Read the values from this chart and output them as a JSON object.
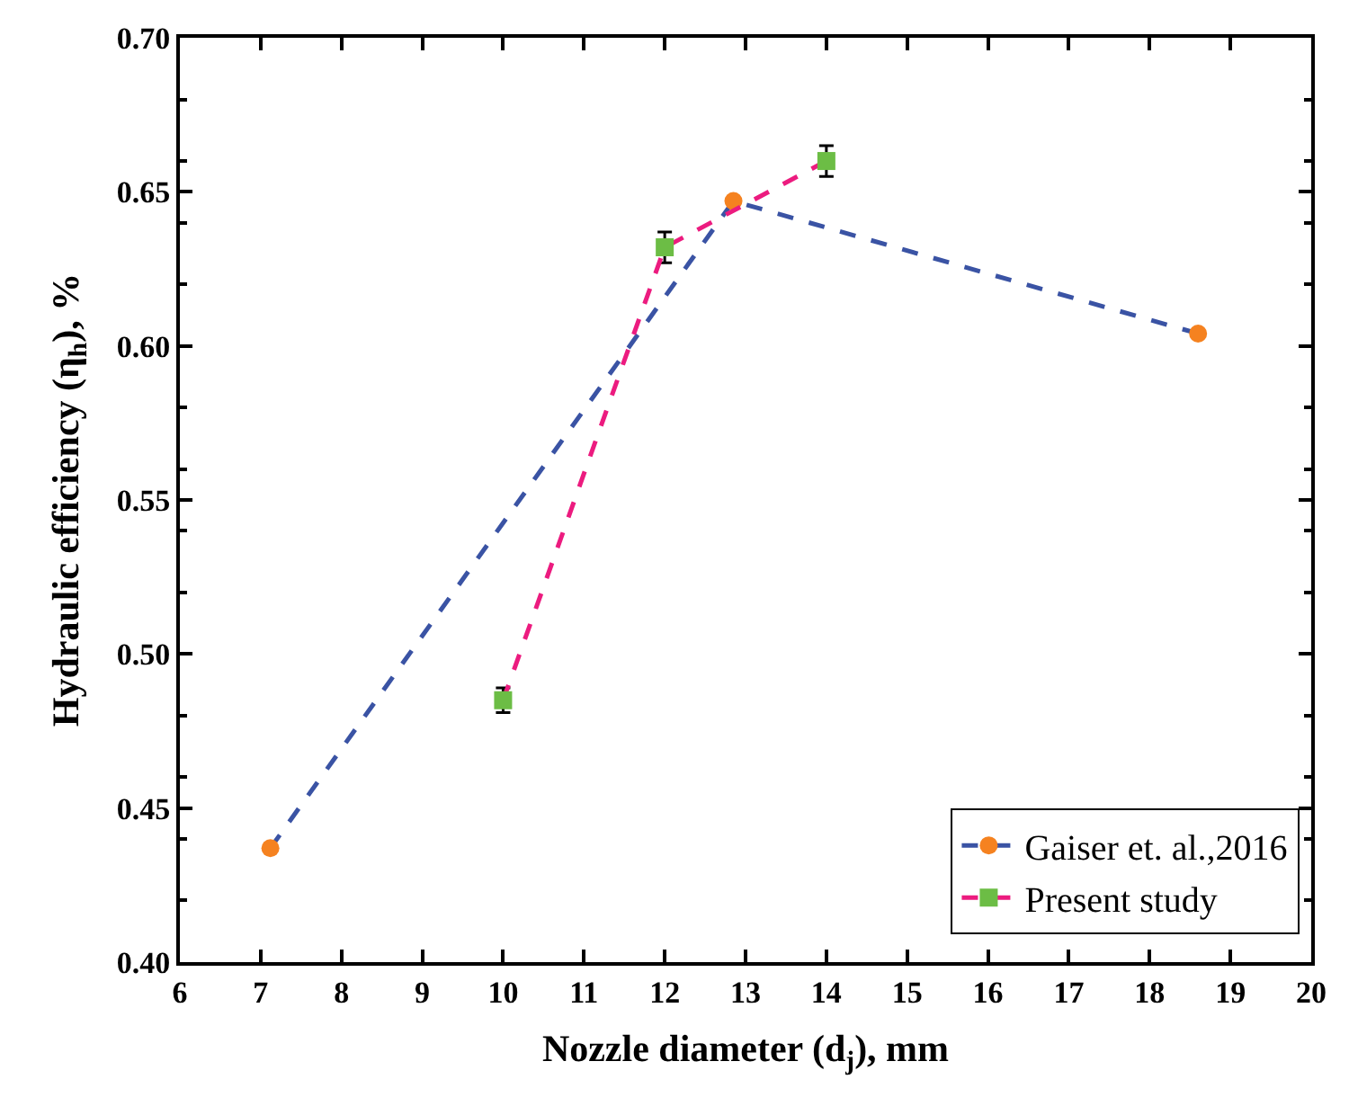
{
  "chart_data": {
    "type": "line",
    "xlabel": "Nozzle diameter (d$_{j}$), mm",
    "ylabel": "Hydraulic efficiency (η$_{h}$), %",
    "series": [
      {
        "name": "Gaiser et. al.,2016",
        "color": "#3a53a4",
        "colors": [
          "#f58220",
          "#f58220",
          "#f58220"
        ],
        "marker": "circle",
        "x": [
          7.12,
          12.85,
          18.6
        ],
        "values": [
          0.437,
          0.647,
          0.604
        ]
      },
      {
        "name": "Present study",
        "color": "#ec1b7f",
        "colors": [
          "#6cbd45",
          "#6cbd45",
          "#6cbd45"
        ],
        "marker": "square",
        "x": [
          10,
          12,
          14
        ],
        "values": [
          0.485,
          0.632,
          0.66
        ],
        "errors": [
          0.004,
          0.005,
          0.005
        ]
      }
    ],
    "xlim": [
      6,
      20
    ],
    "xticks": [
      6,
      7,
      8,
      9,
      10,
      11,
      12,
      13,
      14,
      15,
      16,
      17,
      18,
      19,
      20
    ],
    "ylim": [
      0.4,
      0.7
    ],
    "yticks": [
      {
        "value": 0.4,
        "label": "0.40"
      },
      {
        "value": 0.45,
        "label": "0.45"
      },
      {
        "value": 0.5,
        "label": "0.50"
      },
      {
        "value": 0.55,
        "label": "0.55"
      },
      {
        "value": 0.6,
        "label": "0.60"
      },
      {
        "value": 0.65,
        "label": "0.65"
      },
      {
        "value": 0.7,
        "label": "0.70"
      }
    ],
    "legend": "bottom right",
    "line_style": "dashed"
  }
}
